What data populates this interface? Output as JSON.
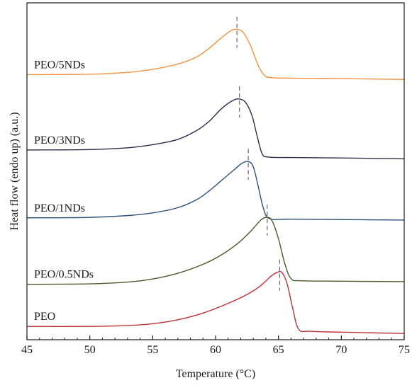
{
  "chart_data": {
    "type": "line",
    "xlabel": "Temperature (°C)",
    "ylabel": "Heat flow (endo up) (a.u.)",
    "xlim": [
      45,
      75
    ],
    "xticks": [
      45,
      50,
      55,
      60,
      65,
      70,
      75
    ],
    "x_tick_labels": [
      "45",
      "50",
      "55",
      "60",
      "65",
      "70",
      "75"
    ],
    "y_units": "arbitrary",
    "grid": false,
    "legend": "inline labels at left",
    "series": [
      {
        "name": "PEO/5NDs",
        "color": "#f4923e",
        "peak_marker": 61.7,
        "points": [
          [
            45,
            5.98
          ],
          [
            50,
            5.99
          ],
          [
            53,
            6.03
          ],
          [
            55,
            6.1
          ],
          [
            57,
            6.22
          ],
          [
            58.5,
            6.38
          ],
          [
            59.5,
            6.58
          ],
          [
            60.5,
            6.82
          ],
          [
            61.2,
            6.97
          ],
          [
            61.7,
            7.0
          ],
          [
            62.2,
            6.93
          ],
          [
            62.8,
            6.62
          ],
          [
            63.4,
            6.18
          ],
          [
            63.9,
            5.96
          ],
          [
            64.5,
            5.91
          ],
          [
            66,
            5.9
          ],
          [
            70,
            5.89
          ],
          [
            75,
            5.87
          ]
        ]
      },
      {
        "name": "PEO/3NDs",
        "color": "#2e2c4a",
        "peak_marker": 61.9,
        "points": [
          [
            45,
            4.28
          ],
          [
            50,
            4.29
          ],
          [
            53,
            4.33
          ],
          [
            55,
            4.4
          ],
          [
            57,
            4.52
          ],
          [
            58.5,
            4.72
          ],
          [
            59.5,
            4.93
          ],
          [
            60.5,
            5.22
          ],
          [
            61.4,
            5.4
          ],
          [
            61.9,
            5.43
          ],
          [
            62.4,
            5.35
          ],
          [
            62.9,
            5.05
          ],
          [
            63.3,
            4.6
          ],
          [
            63.7,
            4.2
          ],
          [
            64.2,
            4.12
          ],
          [
            66,
            4.11
          ],
          [
            70,
            4.1
          ],
          [
            75,
            4.08
          ]
        ]
      },
      {
        "name": "PEO/1NDs",
        "color": "#2f4f77",
        "peak_marker": 62.6,
        "points": [
          [
            45,
            2.75
          ],
          [
            50,
            2.76
          ],
          [
            53,
            2.8
          ],
          [
            55,
            2.86
          ],
          [
            57,
            2.98
          ],
          [
            58.5,
            3.16
          ],
          [
            59.5,
            3.36
          ],
          [
            60.5,
            3.6
          ],
          [
            61.5,
            3.84
          ],
          [
            62.1,
            3.98
          ],
          [
            62.6,
            4.02
          ],
          [
            63.0,
            3.9
          ],
          [
            63.4,
            3.45
          ],
          [
            63.8,
            2.97
          ],
          [
            64.3,
            2.73
          ],
          [
            66,
            2.72
          ],
          [
            70,
            2.71
          ],
          [
            75,
            2.7
          ]
        ]
      },
      {
        "name": "PEO/0.5NDs",
        "color": "#4b5a2c",
        "peak_marker": 64.1,
        "points": [
          [
            45,
            1.25
          ],
          [
            50,
            1.26
          ],
          [
            53,
            1.3
          ],
          [
            55,
            1.37
          ],
          [
            57,
            1.5
          ],
          [
            59,
            1.7
          ],
          [
            60.5,
            1.92
          ],
          [
            61.8,
            2.18
          ],
          [
            62.8,
            2.45
          ],
          [
            63.6,
            2.7
          ],
          [
            64.1,
            2.76
          ],
          [
            64.5,
            2.68
          ],
          [
            65.0,
            2.28
          ],
          [
            65.5,
            1.72
          ],
          [
            66.0,
            1.38
          ],
          [
            66.8,
            1.33
          ],
          [
            70,
            1.32
          ],
          [
            75,
            1.31
          ]
        ]
      },
      {
        "name": "PEO",
        "color": "#c03039",
        "peak_marker": 65.1,
        "points": [
          [
            45,
            0.3
          ],
          [
            50,
            0.3
          ],
          [
            53,
            0.32
          ],
          [
            55,
            0.36
          ],
          [
            57,
            0.45
          ],
          [
            59,
            0.6
          ],
          [
            61,
            0.82
          ],
          [
            62.5,
            1.02
          ],
          [
            63.5,
            1.2
          ],
          [
            64.4,
            1.43
          ],
          [
            64.9,
            1.52
          ],
          [
            65.3,
            1.51
          ],
          [
            65.7,
            1.25
          ],
          [
            66.1,
            0.75
          ],
          [
            66.6,
            0.24
          ],
          [
            67.5,
            0.19
          ],
          [
            70,
            0.17
          ],
          [
            75,
            0.14
          ]
        ]
      }
    ]
  }
}
